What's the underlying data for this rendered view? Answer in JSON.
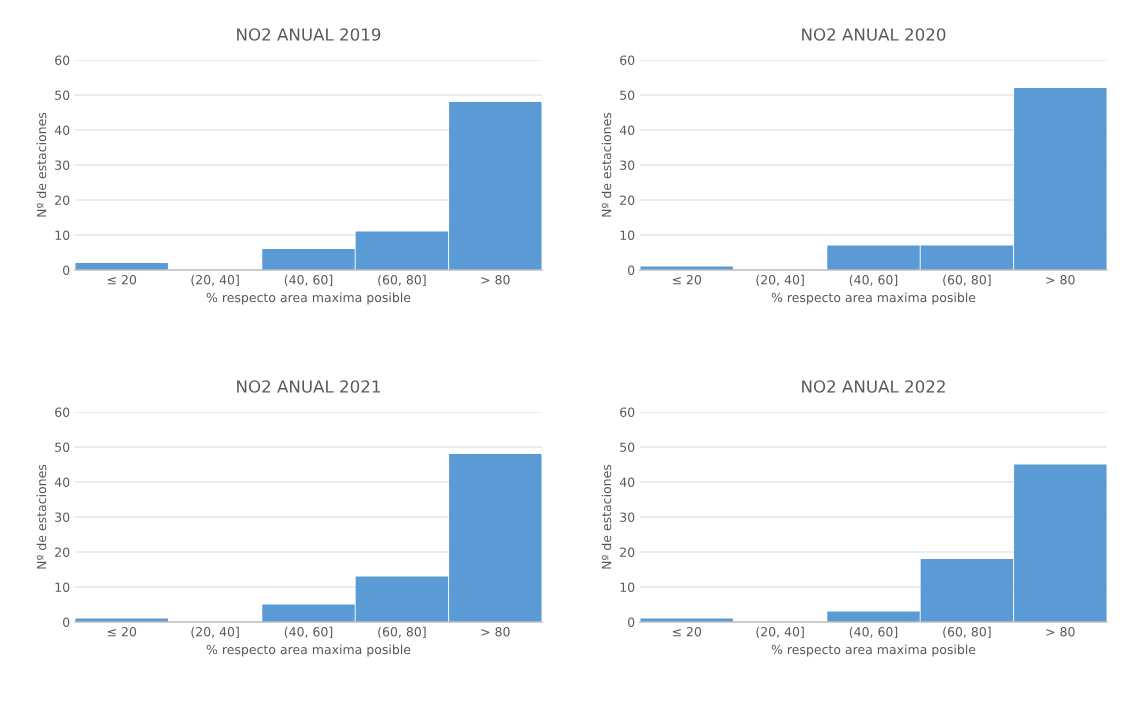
{
  "chart_data": [
    {
      "type": "bar",
      "title": "NO2 ANUAL 2019",
      "xlabel": "% respecto area maxima posible",
      "ylabel": "Nº de estaciones",
      "categories": [
        "≤ 20",
        "(20, 40]",
        "(40, 60]",
        "(60, 80]",
        "> 80"
      ],
      "values": [
        2,
        0,
        6,
        11,
        48
      ],
      "color": "#5b9bd5",
      "ylim": [
        0,
        60
      ],
      "yticks": [
        0,
        10,
        20,
        30,
        40,
        50,
        60
      ],
      "grid": "y"
    },
    {
      "type": "bar",
      "title": "NO2 ANUAL 2020",
      "xlabel": "% respecto area maxima posible",
      "ylabel": "Nº de estaciones",
      "categories": [
        "≤ 20",
        "(20, 40]",
        "(40, 60]",
        "(60, 80]",
        "> 80"
      ],
      "values": [
        1,
        0,
        7,
        7,
        52
      ],
      "color": "#5b9bd5",
      "ylim": [
        0,
        60
      ],
      "yticks": [
        0,
        10,
        20,
        30,
        40,
        50,
        60
      ],
      "grid": "y"
    },
    {
      "type": "bar",
      "title": "NO2 ANUAL 2021",
      "xlabel": "% respecto area maxima posible",
      "ylabel": "Nº de estaciones",
      "categories": [
        "≤ 20",
        "(20, 40]",
        "(40, 60]",
        "(60, 80]",
        "> 80"
      ],
      "values": [
        1,
        0,
        5,
        13,
        48
      ],
      "color": "#5b9bd5",
      "ylim": [
        0,
        60
      ],
      "yticks": [
        0,
        10,
        20,
        30,
        40,
        50,
        60
      ],
      "grid": "y"
    },
    {
      "type": "bar",
      "title": "NO2 ANUAL 2022",
      "xlabel": "% respecto area maxima posible",
      "ylabel": "Nº de estaciones",
      "categories": [
        "≤ 20",
        "(20, 40]",
        "(40, 60]",
        "(60, 80]",
        "> 80"
      ],
      "values": [
        1,
        0,
        3,
        18,
        45
      ],
      "color": "#5b9bd5",
      "ylim": [
        0,
        60
      ],
      "yticks": [
        0,
        10,
        20,
        30,
        40,
        50,
        60
      ],
      "grid": "y"
    }
  ]
}
